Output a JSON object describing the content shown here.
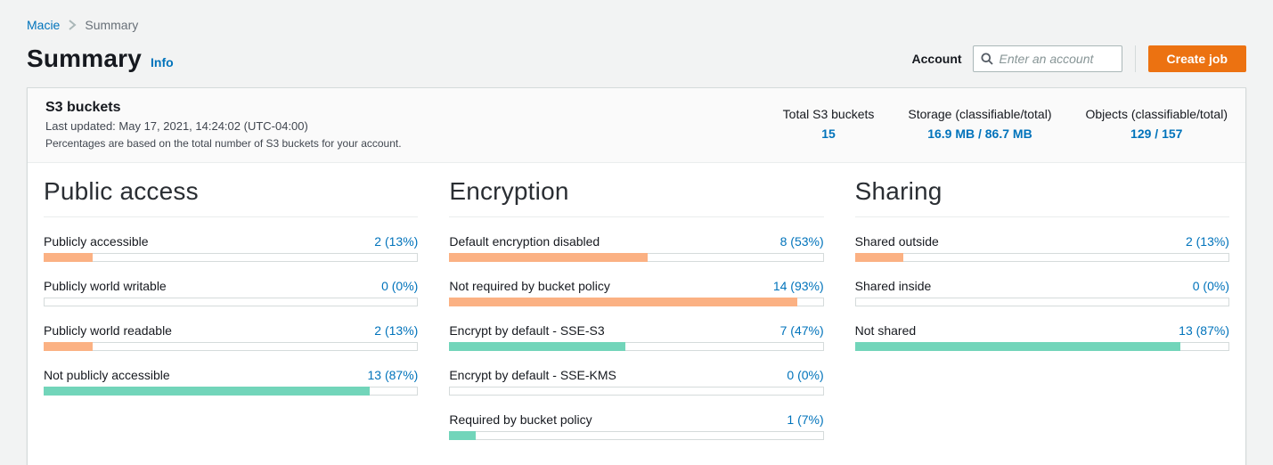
{
  "breadcrumb": {
    "root": "Macie",
    "current": "Summary"
  },
  "page": {
    "title": "Summary",
    "info_label": "Info"
  },
  "toolbar": {
    "account_label": "Account",
    "search_placeholder": "Enter an account",
    "create_job_label": "Create job"
  },
  "panel": {
    "title": "S3 buckets",
    "last_updated": "Last updated: May 17, 2021, 14:24:02 (UTC-04:00)",
    "note": "Percentages are based on the total number of S3 buckets for your account.",
    "stats": [
      {
        "label": "Total S3 buckets",
        "value": "15"
      },
      {
        "label": "Storage (classifiable/total)",
        "value": "16.9 MB / 86.7 MB"
      },
      {
        "label": "Objects (classifiable/total)",
        "value": "129 / 157"
      }
    ]
  },
  "sections": [
    {
      "title": "Public access",
      "rows": [
        {
          "label": "Publicly accessible",
          "value": "2 (13%)",
          "percent": 13,
          "color": "orange"
        },
        {
          "label": "Publicly world writable",
          "value": "0 (0%)",
          "percent": 0,
          "color": "none"
        },
        {
          "label": "Publicly world readable",
          "value": "2 (13%)",
          "percent": 13,
          "color": "orange"
        },
        {
          "label": "Not publicly accessible",
          "value": "13 (87%)",
          "percent": 87,
          "color": "green"
        }
      ]
    },
    {
      "title": "Encryption",
      "rows": [
        {
          "label": "Default encryption disabled",
          "value": "8 (53%)",
          "percent": 53,
          "color": "orange"
        },
        {
          "label": "Not required by bucket policy",
          "value": "14 (93%)",
          "percent": 93,
          "color": "orange"
        },
        {
          "label": "Encrypt by default - SSE-S3",
          "value": "7 (47%)",
          "percent": 47,
          "color": "green"
        },
        {
          "label": "Encrypt by default - SSE-KMS",
          "value": "0 (0%)",
          "percent": 0,
          "color": "none"
        },
        {
          "label": "Required by bucket policy",
          "value": "1 (7%)",
          "percent": 7,
          "color": "green"
        }
      ]
    },
    {
      "title": "Sharing",
      "rows": [
        {
          "label": "Shared outside",
          "value": "2 (13%)",
          "percent": 13,
          "color": "orange"
        },
        {
          "label": "Shared inside",
          "value": "0 (0%)",
          "percent": 0,
          "color": "none"
        },
        {
          "label": "Not shared",
          "value": "13 (87%)",
          "percent": 87,
          "color": "green"
        }
      ]
    }
  ],
  "colors": {
    "link_blue": "#0073bb",
    "button_orange": "#ec7211",
    "bar_orange": "#fbb183",
    "bar_green": "#72d5ba",
    "page_background": "#f2f3f3"
  }
}
